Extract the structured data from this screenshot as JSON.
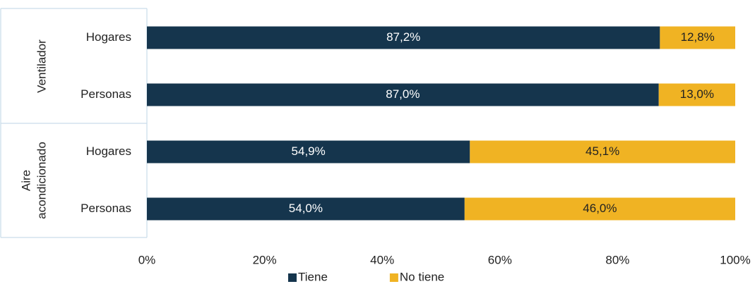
{
  "chart_data": {
    "type": "stacked_hbar",
    "groups": [
      {
        "label": [
          "Ventilador"
        ],
        "categories": [
          "Hogares",
          "Personas"
        ]
      },
      {
        "label": [
          "Aire",
          "acondicionado"
        ],
        "categories": [
          "Hogares",
          "Personas"
        ]
      }
    ],
    "series": [
      {
        "name": "Tiene",
        "color": "#15354d",
        "values": [
          87.2,
          87.0,
          54.9,
          54.0
        ],
        "value_labels": [
          "87,2%",
          "87,0%",
          "54,9%",
          "54,0%"
        ],
        "label_color": "#ffffff"
      },
      {
        "name": "No tiene",
        "color": "#f0b323",
        "values": [
          12.8,
          13.0,
          45.1,
          46.0
        ],
        "value_labels": [
          "12,8%",
          "13,0%",
          "45,1%",
          "46,0%"
        ],
        "label_color": "#222222"
      }
    ],
    "xlim": [
      0,
      100
    ],
    "xticks": [
      {
        "value": 0,
        "label": "0%"
      },
      {
        "value": 20,
        "label": "20%"
      },
      {
        "value": 40,
        "label": "40%"
      },
      {
        "value": 60,
        "label": "60%"
      },
      {
        "value": 80,
        "label": "80%"
      },
      {
        "value": 100,
        "label": "100%"
      }
    ],
    "legend": "bottom"
  }
}
